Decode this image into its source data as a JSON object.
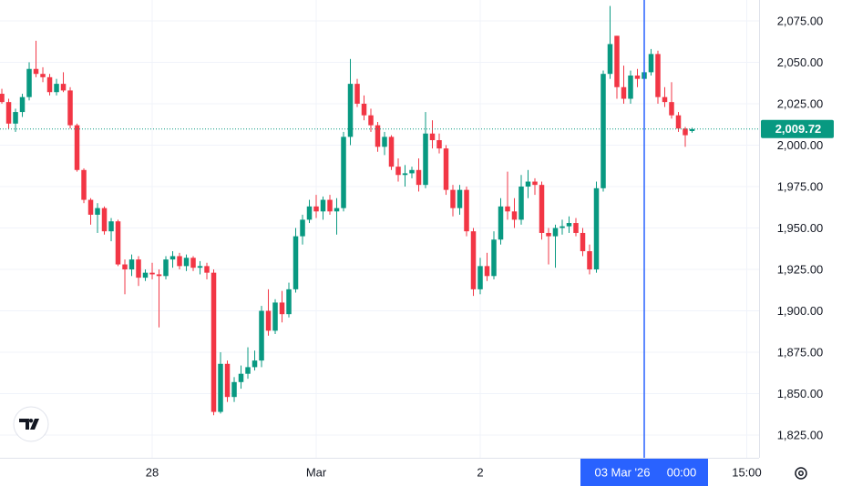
{
  "chart_data": {
    "type": "candlestick",
    "x": [
      0,
      1,
      2,
      3,
      4,
      5,
      6,
      7,
      8,
      9,
      10,
      11,
      12,
      13,
      14,
      15,
      16,
      17,
      18,
      19,
      20,
      21,
      22,
      23,
      24,
      25,
      26,
      27,
      28,
      29,
      30,
      31,
      32,
      33,
      34,
      35,
      36,
      37,
      38,
      39,
      40,
      41,
      42,
      43,
      44,
      45,
      46,
      47,
      48,
      49,
      50,
      51,
      52,
      53,
      54,
      55,
      56,
      57,
      58,
      59,
      60,
      61,
      62,
      63,
      64,
      65,
      66,
      67,
      68,
      69,
      70,
      71,
      72,
      73,
      74,
      75,
      76,
      77,
      78,
      79,
      80,
      81,
      82,
      83,
      84,
      85,
      86,
      87,
      88,
      89,
      90,
      91,
      92,
      93,
      94,
      95,
      96,
      97,
      98,
      99,
      100,
      101
    ],
    "open": [
      2031,
      2026,
      2013,
      2020,
      2029,
      2046,
      2043,
      2041,
      2032,
      2037,
      2033,
      2012,
      1985,
      1967,
      1958,
      1962,
      1948,
      1954,
      1928,
      1925,
      1931,
      1920,
      1923,
      1922,
      1921,
      1931,
      1933,
      1927,
      1932,
      1926,
      1927,
      1923,
      1839,
      1868,
      1848,
      1857,
      1862,
      1866,
      1870,
      1900,
      1888,
      1905,
      1898,
      1913,
      1945,
      1955,
      1963,
      1960,
      1967,
      1960,
      1962,
      2005,
      2037,
      2025,
      2018,
      2012,
      1999,
      2005,
      1987,
      1982,
      1983,
      1985,
      1976,
      2007,
      2003,
      1998,
      1973,
      1962,
      1973,
      1948,
      1913,
      1927,
      1921,
      1943,
      1963,
      1960,
      1955,
      1975,
      1978,
      1976,
      1947,
      1945,
      1950,
      1951,
      1953,
      1947,
      1936,
      1925,
      1974,
      2043,
      2066,
      2035,
      2028,
      2042,
      2040,
      2044,
      2055,
      2029,
      2026,
      2018,
      2010,
      2008.5
    ],
    "high": [
      2034,
      2028,
      2022,
      2031,
      2050,
      2063,
      2047,
      2043,
      2040,
      2044,
      2035,
      2013,
      1986,
      1968,
      1965,
      1963,
      1956,
      1955,
      1931,
      1934,
      1933,
      1925,
      1929,
      1925,
      1933,
      1936,
      1935,
      1934,
      1933,
      1930,
      1929,
      1925,
      1875,
      1870,
      1860,
      1867,
      1878,
      1876,
      1903,
      1913,
      1907,
      1912,
      1917,
      1950,
      1958,
      1967,
      1970,
      1969,
      1970,
      1968,
      2008,
      2052,
      2040,
      2030,
      2022,
      2014,
      2008,
      2006,
      1992,
      1988,
      1987,
      1992,
      2020,
      2015,
      2007,
      2000,
      1976,
      1976,
      1975,
      1950,
      1932,
      1935,
      1948,
      1968,
      1984,
      1968,
      1982,
      1985,
      1980,
      1978,
      1950,
      1952,
      1955,
      1957,
      1956,
      1950,
      1940,
      1978,
      2045,
      2084,
      2066,
      2048,
      2045,
      2046,
      2050,
      2058,
      2057,
      2035,
      2038,
      2020,
      2011,
      2010.5
    ],
    "low": [
      2025,
      2010,
      2008,
      2017,
      2027,
      2041,
      2038,
      2030,
      2030,
      2032,
      2010,
      1984,
      1965,
      1952,
      1947,
      1946,
      1942,
      1927,
      1910,
      1921,
      1915,
      1918,
      1919,
      1890,
      1919,
      1926,
      1925,
      1924,
      1924,
      1922,
      1919,
      1837,
      1838,
      1845,
      1845,
      1853,
      1859,
      1864,
      1866,
      1885,
      1886,
      1893,
      1896,
      1911,
      1940,
      1953,
      1956,
      1955,
      1958,
      1946,
      1960,
      2000,
      2023,
      2015,
      2008,
      1996,
      1994,
      1985,
      1978,
      1975,
      1980,
      1972,
      1974,
      1998,
      1995,
      1970,
      1957,
      1958,
      1945,
      1909,
      1910,
      1918,
      1919,
      1940,
      1955,
      1950,
      1952,
      1968,
      1970,
      1943,
      1928,
      1926,
      1946,
      1947,
      1945,
      1933,
      1922,
      1923,
      1972,
      2040,
      2028,
      2025,
      2025,
      2035,
      2030,
      2042,
      2025,
      2023,
      2016,
      2008,
      1999,
      2007.5
    ],
    "close": [
      2026,
      2013,
      2020,
      2029,
      2046,
      2043,
      2041,
      2032,
      2037,
      2033,
      2012,
      1985,
      1967,
      1958,
      1962,
      1948,
      1954,
      1928,
      1925,
      1931,
      1920,
      1923,
      1922,
      1921,
      1931,
      1933,
      1927,
      1932,
      1926,
      1927,
      1923,
      1839,
      1868,
      1848,
      1857,
      1862,
      1866,
      1870,
      1900,
      1888,
      1905,
      1898,
      1913,
      1945,
      1955,
      1963,
      1960,
      1967,
      1960,
      1962,
      2005,
      2037,
      2025,
      2018,
      2012,
      1999,
      2005,
      1987,
      1982,
      1983,
      1985,
      1976,
      2007,
      2003,
      1998,
      1973,
      1962,
      1973,
      1948,
      1913,
      1927,
      1921,
      1943,
      1963,
      1960,
      1955,
      1975,
      1978,
      1976,
      1947,
      1945,
      1950,
      1951,
      1953,
      1947,
      1936,
      1925,
      1974,
      2043,
      2061,
      2035,
      2028,
      2042,
      2040,
      2044,
      2055,
      2029,
      2026,
      2018,
      2010,
      2006,
      2009.72
    ],
    "up_color": "#089981",
    "down_color": "#f23645",
    "xlim": [
      -0.27,
      110.8
    ],
    "xticks": [
      {
        "value": 22,
        "label": "28"
      },
      {
        "value": 46,
        "label": "Mar"
      },
      {
        "value": 70,
        "label": "2"
      },
      {
        "value": 109,
        "label": "15:00"
      }
    ],
    "ylim": [
      1811.3,
      2087.6
    ],
    "yticks": [
      {
        "value": 1825,
        "label": "1,825.00"
      },
      {
        "value": 1850,
        "label": "1,850.00"
      },
      {
        "value": 1875,
        "label": "1,875.00"
      },
      {
        "value": 1900,
        "label": "1,900.00"
      },
      {
        "value": 1925,
        "label": "1,925.00"
      },
      {
        "value": 1950,
        "label": "1,950.00"
      },
      {
        "value": 1975,
        "label": "1,975.00"
      },
      {
        "value": 2000,
        "label": "2,000.00"
      },
      {
        "value": 2025,
        "label": "2,025.00"
      },
      {
        "value": 2050,
        "label": "2,050.00"
      },
      {
        "value": 2075,
        "label": "2,075.00"
      }
    ],
    "grid": true,
    "last_price": {
      "value": 2009.72,
      "label": "2,009.72",
      "color": "#089981"
    },
    "crosshair": {
      "x": 94,
      "date": "03 Mar '26",
      "time": "00:00",
      "color": "#2962ff"
    }
  }
}
